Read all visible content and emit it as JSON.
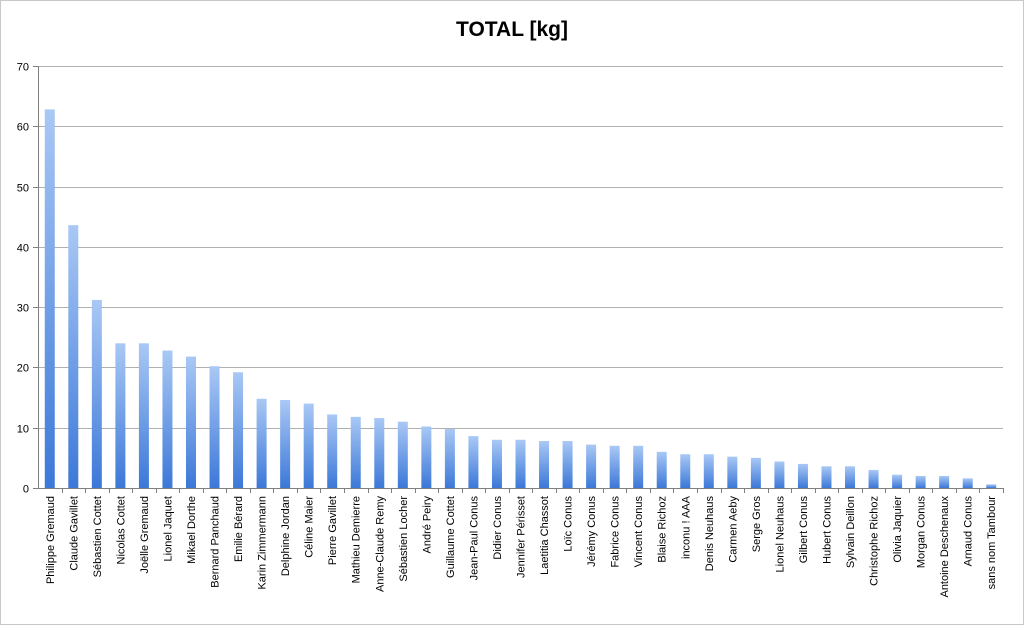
{
  "chart_data": {
    "type": "bar",
    "title": "TOTAL [kg]",
    "xlabel": "",
    "ylabel": "",
    "ylim": [
      0,
      70
    ],
    "yticks": [
      0,
      10,
      20,
      30,
      40,
      50,
      60,
      70
    ],
    "grid": true,
    "legend": "none",
    "bar_color_top": "#a9c8f5",
    "bar_color_bottom": "#3c78d8",
    "categories": [
      "Philippe Gremaud",
      "Claude Gavillet",
      "Sébastien Cottet",
      "Nicolas Cottet",
      "Joëlle Gremaud",
      "Lionel Jaquet",
      "Mikael Dorthe",
      "Bernard Panchaud",
      "Emilie Bérard",
      "Karin Zimmermann",
      "Delphine Jordan",
      "Céline Maier",
      "Pierre Gavillet",
      "Mathieu Demierre",
      "Anne-Claude Remy",
      "Sébastien Locher",
      "André Peiry",
      "Guillaume Cottet",
      "Jean-Paul Conus",
      "Didier Conus",
      "Jennifer Périsset",
      "Laetitia Chassot",
      "Loïc Conus",
      "Jérémy Conus",
      "Fabrice Conus",
      "Vincent Conus",
      "Blaise Richoz",
      "inconu ! AAA",
      "Denis Neuhaus",
      "Carmen Aeby",
      "Serge Gros",
      "Lionel Neuhaus",
      "Gilbert Conus",
      "Hubert Conus",
      "Sylvain Deillon",
      "Christophe Richoz",
      "Olivia Jaquier",
      "Morgan Conus",
      "Antoine Deschenaux",
      "Arnaud Conus",
      "sans nom Tambour"
    ],
    "values": [
      62.8,
      43.6,
      31.2,
      24.0,
      24.0,
      22.8,
      21.8,
      20.2,
      19.2,
      14.8,
      14.6,
      14.0,
      12.2,
      11.8,
      11.6,
      11.0,
      10.2,
      9.8,
      8.6,
      8.0,
      8.0,
      7.8,
      7.8,
      7.2,
      7.0,
      7.0,
      6.0,
      5.6,
      5.6,
      5.2,
      5.0,
      4.4,
      4.0,
      3.6,
      3.6,
      3.0,
      2.2,
      2.0,
      2.0,
      1.6,
      0.6
    ]
  }
}
